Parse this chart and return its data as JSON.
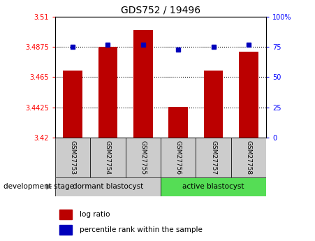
{
  "title": "GDS752 / 19496",
  "samples": [
    "GSM27753",
    "GSM27754",
    "GSM27755",
    "GSM27756",
    "GSM27757",
    "GSM27758"
  ],
  "log_ratio": [
    3.47,
    3.4875,
    3.5,
    3.443,
    3.47,
    3.484
  ],
  "percentile_rank": [
    75,
    77,
    77,
    73,
    75,
    77
  ],
  "ylim_left": [
    3.42,
    3.51
  ],
  "ylim_right": [
    0,
    100
  ],
  "left_ticks": [
    3.42,
    3.4425,
    3.465,
    3.4875,
    3.51
  ],
  "left_tick_labels": [
    "3.42",
    "3.4425",
    "3.465",
    "3.4875",
    "3.51"
  ],
  "right_ticks": [
    0,
    25,
    50,
    75,
    100
  ],
  "right_tick_labels": [
    "0",
    "25",
    "50",
    "75",
    "100%"
  ],
  "bar_color": "#bb0000",
  "marker_color": "#0000bb",
  "group1_label": "dormant blastocyst",
  "group2_label": "active blastocyst",
  "group1_color": "#cccccc",
  "group2_color": "#55dd55",
  "dev_stage_label": "development stage",
  "legend_bar_label": "log ratio",
  "legend_marker_label": "percentile rank within the sample",
  "base_value": 3.42
}
